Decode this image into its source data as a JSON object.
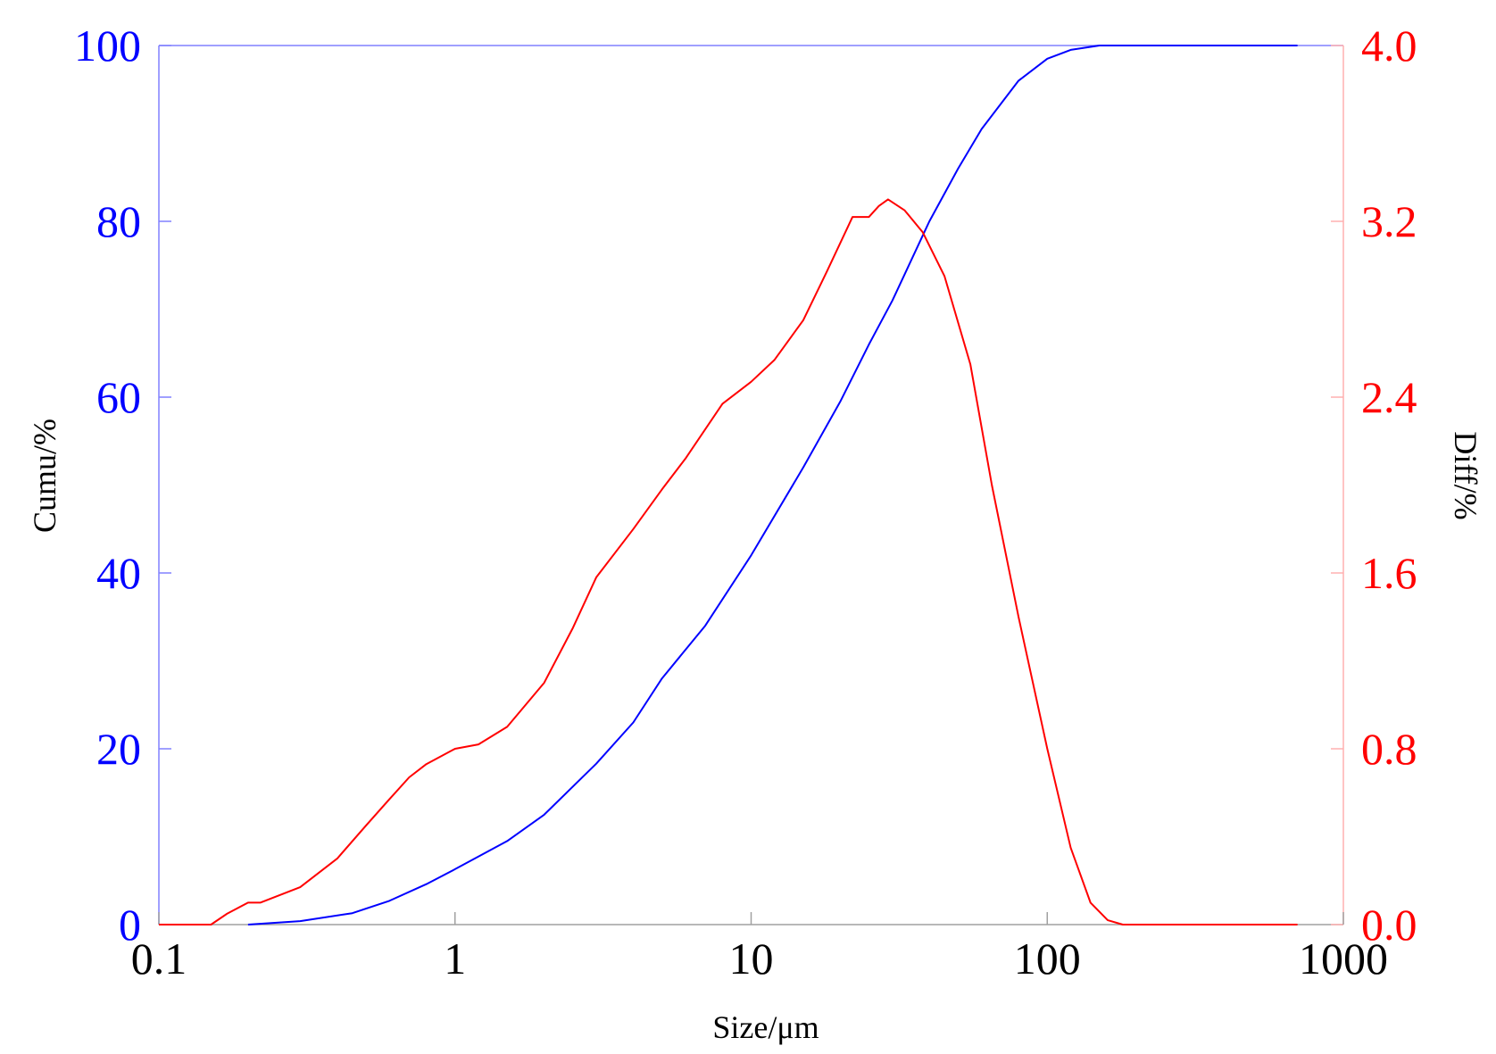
{
  "chart_data": {
    "type": "line",
    "xlabel": "Size/μm",
    "ylabel_left": "Cumu/%",
    "ylabel_right": "Diff/%",
    "x_scale": "log",
    "xlim": [
      0.1,
      1000
    ],
    "ylim_left": [
      0,
      100
    ],
    "ylim_right": [
      0,
      4.0
    ],
    "x_ticks": [
      "0.1",
      "1",
      "10",
      "100",
      "1000"
    ],
    "y_ticks_left": [
      "0",
      "20",
      "40",
      "60",
      "80",
      "100"
    ],
    "y_ticks_right": [
      "0.0",
      "0.8",
      "1.6",
      "2.4",
      "3.2",
      "4.0"
    ],
    "grid": false,
    "colors": {
      "cumu": "#0000ff",
      "diff": "#ff0000"
    },
    "series": [
      {
        "axis": "left",
        "color": "#0000ff",
        "x": [
          0.2,
          0.3,
          0.45,
          0.6,
          0.8,
          1,
          1.5,
          2,
          3,
          4,
          5,
          7,
          10,
          15,
          20,
          25,
          30,
          40,
          50,
          60,
          80,
          100,
          120,
          150,
          200,
          400,
          700
        ],
        "y": [
          0,
          0.4,
          1.3,
          2.7,
          4.6,
          6.3,
          9.5,
          12.5,
          18.3,
          23,
          28,
          34,
          42,
          52,
          59.5,
          66,
          71,
          80,
          86,
          90.5,
          96,
          98.5,
          99.5,
          100,
          100,
          100,
          100
        ]
      },
      {
        "axis": "right",
        "color": "#ff0000",
        "x": [
          0.1,
          0.15,
          0.17,
          0.2,
          0.22,
          0.3,
          0.4,
          0.5,
          0.6,
          0.7,
          0.8,
          1,
          1.2,
          1.5,
          2,
          2.5,
          3,
          4,
          5,
          6,
          8,
          10,
          12,
          15,
          18,
          22,
          25,
          27,
          29,
          33,
          38,
          45,
          55,
          65,
          80,
          100,
          120,
          140,
          160,
          180,
          300,
          700
        ],
        "y": [
          0,
          0,
          0.05,
          0.1,
          0.1,
          0.17,
          0.3,
          0.45,
          0.57,
          0.67,
          0.73,
          0.8,
          0.82,
          0.9,
          1.1,
          1.35,
          1.58,
          1.8,
          1.98,
          2.12,
          2.37,
          2.47,
          2.57,
          2.75,
          2.97,
          3.22,
          3.22,
          3.27,
          3.3,
          3.25,
          3.15,
          2.95,
          2.55,
          2.0,
          1.4,
          0.8,
          0.35,
          0.1,
          0.02,
          0,
          0,
          0
        ]
      }
    ]
  }
}
